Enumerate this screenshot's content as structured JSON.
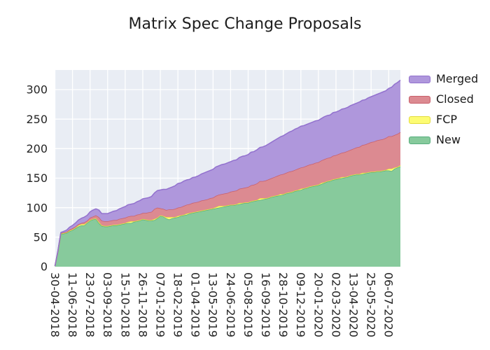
{
  "title": "Matrix Spec Change Proposals",
  "colors": {
    "figure_bg": "#ffffff",
    "plot_bg": "#e9edf4",
    "grid": "#ffffff",
    "text": "#262626"
  },
  "chart_data": {
    "type": "area",
    "stacked": true,
    "title": "Matrix Spec Change Proposals",
    "xlabel": "",
    "ylabel": "",
    "grid": true,
    "legend_position": "right-outside",
    "legend_order_top_to_bottom": [
      "Merged",
      "Closed",
      "FCP",
      "New"
    ],
    "y_ticks": [
      0,
      50,
      100,
      150,
      200,
      250,
      300
    ],
    "ylim": [
      0,
      333
    ],
    "x_points_are_weekly": true,
    "n_points": 119,
    "x_tick_week_positions": [
      0,
      6,
      12,
      18,
      24,
      30,
      36,
      42,
      48,
      54,
      60,
      66,
      72,
      78,
      84,
      90,
      96,
      102,
      108,
      114
    ],
    "x_tick_labels": [
      "30-04-2018",
      "11-06-2018",
      "23-07-2018",
      "03-09-2018",
      "15-10-2018",
      "26-11-2018",
      "07-01-2019",
      "18-02-2019",
      "01-04-2019",
      "13-05-2019",
      "24-06-2019",
      "05-08-2019",
      "16-09-2019",
      "28-10-2019",
      "09-12-2019",
      "20-01-2020",
      "02-03-2020",
      "13-04-2020",
      "25-05-2020",
      "06-07-2020"
    ],
    "series": [
      {
        "name": "New",
        "fill": "#87ca9c",
        "edge": "#57ae7e",
        "values": [
          1,
          25,
          55,
          56,
          57,
          60,
          62,
          65,
          68,
          70,
          70,
          74,
          78,
          80,
          81,
          74,
          69,
          68,
          68,
          69,
          70,
          70,
          71,
          72,
          73,
          74,
          74,
          76,
          77,
          78,
          80,
          79,
          78,
          78,
          79,
          82,
          86,
          85,
          82,
          80,
          82,
          83,
          84,
          86,
          87,
          88,
          90,
          91,
          92,
          93,
          94,
          95,
          96,
          97,
          98,
          99,
          100,
          101,
          102,
          103,
          104,
          104,
          105,
          106,
          107,
          108,
          108,
          110,
          111,
          112,
          113,
          114,
          115,
          116,
          118,
          119,
          120,
          121,
          122,
          124,
          125,
          126,
          128,
          129,
          130,
          132,
          133,
          135,
          136,
          137,
          138,
          140,
          142,
          144,
          145,
          147,
          148,
          149,
          150,
          151,
          152,
          154,
          155,
          156,
          156,
          157,
          158,
          159,
          160,
          160,
          161,
          161,
          162,
          163,
          163,
          162,
          166,
          168,
          170
        ]
      },
      {
        "name": "FCP",
        "fill": "#fdfc73",
        "edge": "#e3dc3f",
        "values": [
          0,
          1,
          1,
          1,
          1,
          1,
          1,
          1,
          2,
          2,
          2,
          1,
          1,
          1,
          1,
          2,
          1,
          1,
          1,
          1,
          1,
          1,
          1,
          1,
          1,
          2,
          3,
          1,
          1,
          1,
          1,
          1,
          1,
          1,
          2,
          1,
          1,
          1,
          2,
          4,
          2,
          1,
          2,
          1,
          1,
          2,
          1,
          1,
          1,
          1,
          1,
          1,
          1,
          1,
          1,
          2,
          3,
          2,
          1,
          1,
          1,
          1,
          1,
          2,
          1,
          1,
          1,
          1,
          1,
          1,
          3,
          2,
          1,
          1,
          1,
          1,
          1,
          2,
          1,
          1,
          1,
          1,
          1,
          1,
          2,
          1,
          1,
          1,
          1,
          1,
          1,
          2,
          1,
          1,
          1,
          1,
          1,
          1,
          2,
          1,
          1,
          1,
          1,
          1,
          1,
          2,
          1,
          1,
          1,
          1,
          1,
          1,
          1,
          1,
          3,
          4,
          2,
          1,
          2
        ]
      },
      {
        "name": "Closed",
        "fill": "#dc8a91",
        "edge": "#c95f6a",
        "values": [
          0,
          0,
          1,
          1,
          1,
          2,
          2,
          2,
          2,
          2,
          3,
          3,
          4,
          4,
          5,
          8,
          8,
          8,
          8,
          8,
          8,
          8,
          9,
          9,
          9,
          9,
          9,
          9,
          10,
          10,
          10,
          11,
          13,
          14,
          17,
          17,
          12,
          12,
          12,
          13,
          13,
          14,
          14,
          14,
          15,
          15,
          15,
          16,
          16,
          16,
          17,
          17,
          17,
          18,
          18,
          19,
          19,
          20,
          21,
          21,
          22,
          23,
          23,
          24,
          25,
          25,
          26,
          27,
          27,
          28,
          29,
          29,
          30,
          31,
          31,
          32,
          33,
          33,
          34,
          34,
          35,
          35,
          35,
          36,
          36,
          36,
          37,
          37,
          37,
          38,
          38,
          38,
          39,
          39,
          39,
          40,
          40,
          41,
          41,
          42,
          43,
          43,
          44,
          45,
          46,
          47,
          48,
          49,
          50,
          51,
          52,
          53,
          53,
          54,
          55,
          55,
          55,
          56,
          56
        ]
      },
      {
        "name": "Merged",
        "fill": "#af97dc",
        "edge": "#9271ce",
        "values": [
          0,
          1,
          1,
          2,
          3,
          4,
          5,
          6,
          7,
          8,
          9,
          9,
          10,
          11,
          11,
          12,
          12,
          13,
          13,
          14,
          15,
          16,
          17,
          18,
          19,
          20,
          20,
          21,
          22,
          23,
          24,
          25,
          25,
          26,
          27,
          29,
          31,
          33,
          35,
          36,
          38,
          39,
          41,
          41,
          42,
          42,
          42,
          43,
          43,
          44,
          45,
          46,
          47,
          47,
          48,
          49,
          49,
          50,
          50,
          51,
          51,
          52,
          52,
          53,
          54,
          54,
          55,
          56,
          56,
          57,
          57,
          58,
          59,
          60,
          61,
          62,
          63,
          64,
          65,
          66,
          67,
          68,
          69,
          69,
          70,
          70,
          70,
          70,
          71,
          71,
          71,
          71,
          72,
          72,
          72,
          73,
          73,
          73,
          74,
          74,
          74,
          75,
          75,
          75,
          76,
          76,
          76,
          77,
          77,
          78,
          78,
          79,
          80,
          80,
          81,
          83,
          86,
          87,
          88
        ]
      }
    ]
  }
}
